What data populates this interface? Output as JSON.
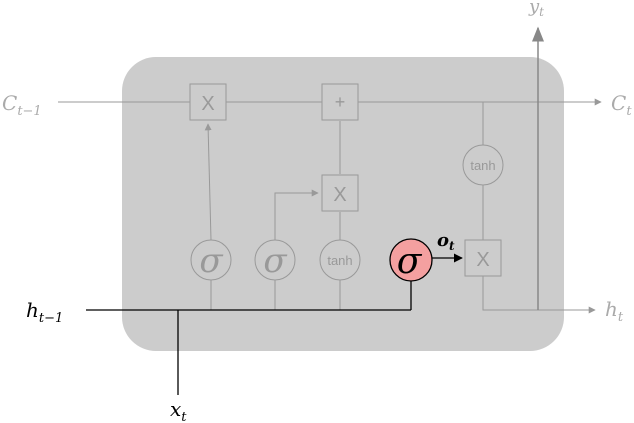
{
  "labels": {
    "c_prev": "C",
    "c_prev_sub": "t−1",
    "c_next": "C",
    "c_next_sub": "t",
    "h_prev": "h",
    "h_prev_sub": "t−1",
    "h_next": "h",
    "h_next_sub": "t",
    "x_in": "x",
    "x_in_sub": "t",
    "y_out": "y",
    "y_out_sub": "t",
    "o_gate": "o",
    "o_gate_sub": "t"
  },
  "ops": {
    "multiply": "X",
    "add": "+",
    "sigma": "σ",
    "tanh": "tanh"
  },
  "colors": {
    "cell_background": "#cccccc",
    "faded_line": "#999999",
    "faded_text": "#999999",
    "node_stroke": "#999999",
    "highlight_fill": "#f4a0a0",
    "highlight_stroke": "#000000",
    "active_line": "#000000",
    "arrow_gray": "#888888"
  }
}
